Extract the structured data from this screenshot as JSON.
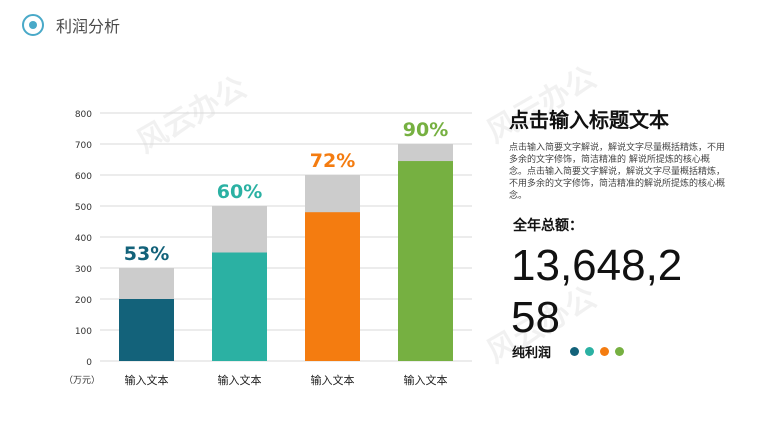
{
  "header": {
    "title": "利润分析"
  },
  "watermarks": [
    "风云办公",
    "风云办公",
    "风云办公"
  ],
  "chart_data": {
    "type": "bar",
    "categories": [
      "输入文本",
      "输入文本",
      "输入文本",
      "输入文本"
    ],
    "series": [
      {
        "values": [
          200,
          350,
          480,
          645
        ]
      },
      {
        "values": [
          300,
          500,
          600,
          700
        ]
      }
    ],
    "data_labels": [
      "53%",
      "60%",
      "72%",
      "90%"
    ],
    "colors": [
      "#13627a",
      "#2bb1a3",
      "#f47c10",
      "#76b041"
    ],
    "background_color": "#cccccc",
    "yticks": [
      0,
      100,
      200,
      300,
      400,
      500,
      600,
      700,
      800
    ],
    "ylim": [
      0,
      800
    ],
    "unit_label": "（万元）",
    "grid": true
  },
  "side": {
    "title": "点击输入标题文本",
    "description": "点击输入简要文字解说，解说文字尽量概括精炼，不用多余的文字修饰，简洁精准的 解说所提炼的核心概念。点击输入简要文字解说，解说文字尽量概括精炼，不用多余的文字修饰，简洁精准的解说所提炼的核心概念。",
    "total_label": "全年总额：",
    "total_value": "13,648,258",
    "net_label": "纯利润",
    "dot_colors": [
      "#13627a",
      "#2bb1a3",
      "#f47c10",
      "#76b041"
    ]
  }
}
